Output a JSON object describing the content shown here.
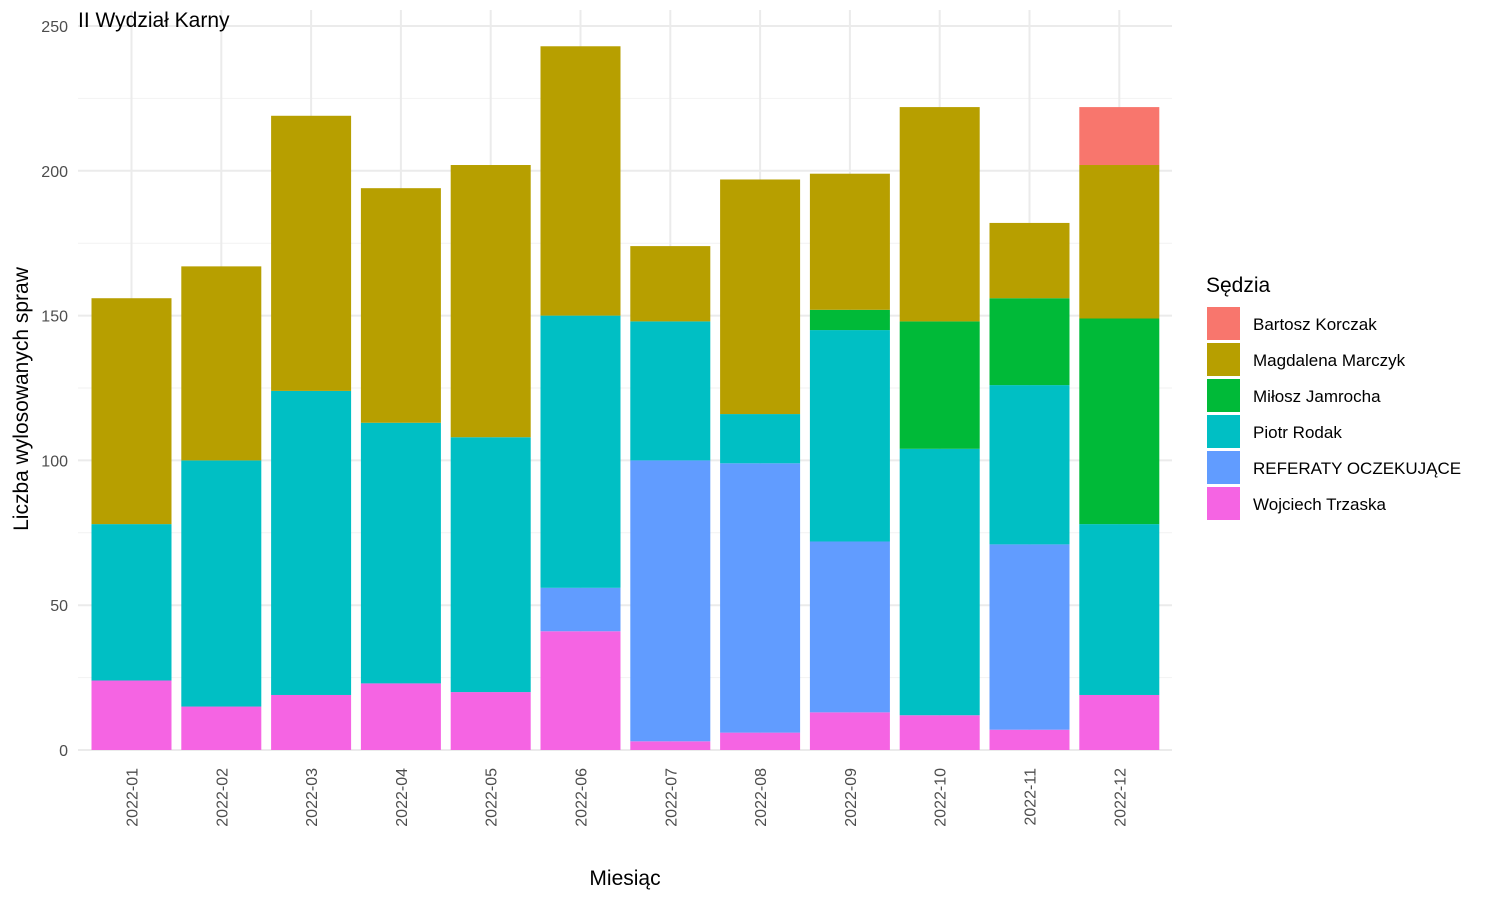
{
  "chart_data": {
    "type": "bar",
    "stacked": true,
    "title": "II Wydział Karny",
    "xlabel": "Miesiąc",
    "ylabel": "Liczba wylosowanych spraw",
    "ylim": [
      0,
      255
    ],
    "yticks": [
      0,
      50,
      100,
      150,
      200,
      250
    ],
    "grid": true,
    "legend_title": "Sędzia",
    "legend_position": "right",
    "categories": [
      "2022-01",
      "2022-02",
      "2022-03",
      "2022-04",
      "2022-05",
      "2022-06",
      "2022-07",
      "2022-08",
      "2022-09",
      "2022-10",
      "2022-11",
      "2022-12"
    ],
    "series": [
      {
        "name": "Wojciech Trzaska",
        "color": "#F564E3",
        "values": [
          24,
          15,
          19,
          23,
          20,
          41,
          3,
          6,
          13,
          12,
          7,
          19
        ]
      },
      {
        "name": "REFERATY OCZEKUJĄCE",
        "color": "#619CFF",
        "values": [
          0,
          0,
          0,
          0,
          0,
          15,
          97,
          93,
          59,
          0,
          64,
          0
        ]
      },
      {
        "name": "Piotr Rodak",
        "color": "#00BFC4",
        "values": [
          54,
          85,
          105,
          90,
          88,
          94,
          48,
          17,
          73,
          92,
          55,
          59
        ]
      },
      {
        "name": "Miłosz Jamrocha",
        "color": "#00BA38",
        "values": [
          0,
          0,
          0,
          0,
          0,
          0,
          0,
          0,
          7,
          44,
          30,
          71
        ]
      },
      {
        "name": "Magdalena Marczyk",
        "color": "#B79F00",
        "values": [
          78,
          67,
          95,
          81,
          94,
          93,
          26,
          81,
          47,
          74,
          26,
          53
        ]
      },
      {
        "name": "Bartosz Korczak",
        "color": "#F8766D",
        "values": [
          0,
          0,
          0,
          0,
          0,
          0,
          0,
          0,
          0,
          0,
          0,
          20
        ]
      }
    ],
    "legend_order": [
      "Bartosz Korczak",
      "Magdalena Marczyk",
      "Miłosz Jamrocha",
      "Piotr Rodak",
      "REFERATY OCZEKUJĄCE",
      "Wojciech Trzaska"
    ]
  }
}
